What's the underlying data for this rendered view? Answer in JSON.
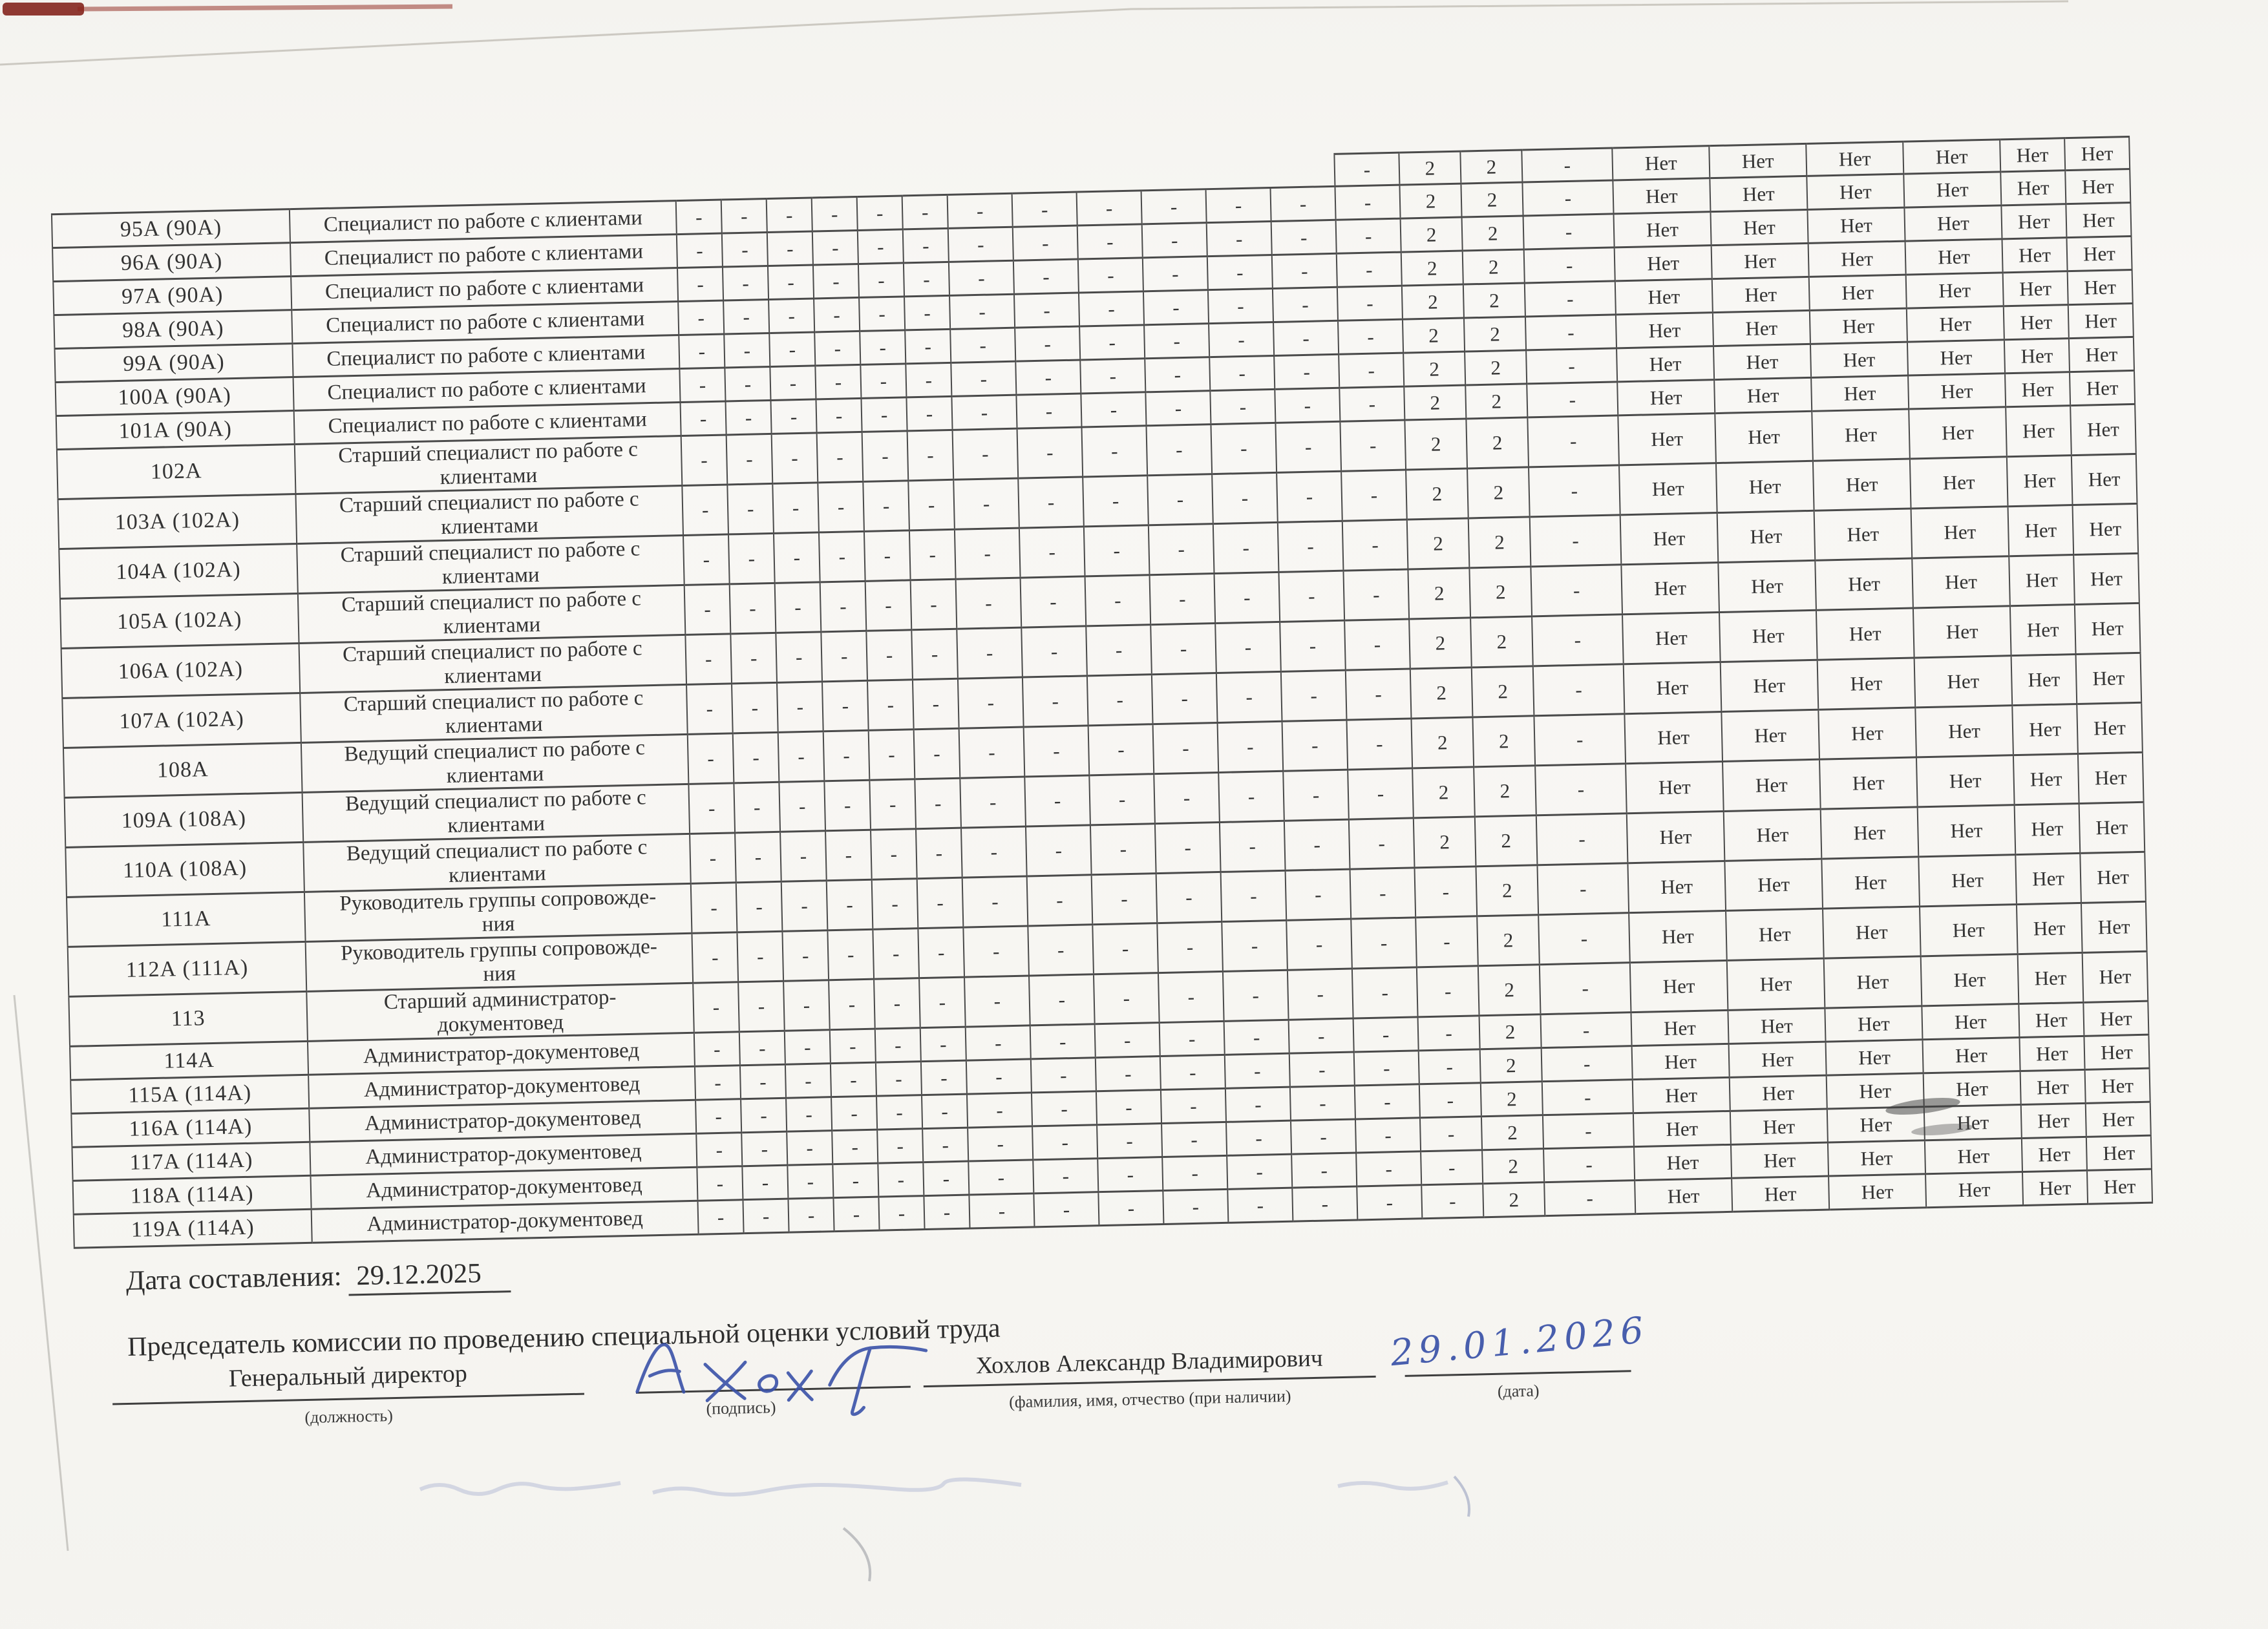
{
  "document": {
    "footer": {
      "date_label": "Дата составления:",
      "date_value": "29.12.2025",
      "chairman_heading": "Председатель комиссии по проведению специальной оценки условий труда",
      "position_value": "Генеральный директор",
      "position_caption": "(должность)",
      "signature_caption": "(подпись)",
      "name_value": "Хохлов Александр Владимирович",
      "name_caption": "(фамилия, имя, отчество (при наличии)",
      "handwritten_date": "29.01.2026",
      "date_caption": "(дата)"
    }
  },
  "colors": {
    "paper": "#f7f6f2",
    "table_border": "#4a4a4a",
    "text": "#333333",
    "blue_ink": "#3a52a8",
    "red_scan_edge": "#7c1710"
  },
  "table": {
    "value_patterns": {
      "standard": [
        "-",
        "-",
        "-",
        "-",
        "-",
        "-",
        "-",
        "-",
        "-",
        "-",
        "-",
        "-",
        "-",
        "2",
        "2",
        "-",
        "Нет",
        "Нет",
        "Нет",
        "Нет",
        "Нет",
        "Нет"
      ],
      "no_tension": [
        "-",
        "-",
        "-",
        "-",
        "-",
        "-",
        "-",
        "-",
        "-",
        "-",
        "-",
        "-",
        "-",
        "-",
        "2",
        "-",
        "Нет",
        "Нет",
        "Нет",
        "Нет",
        "Нет",
        "Нет"
      ],
      "partial_top": [
        "",
        "",
        "",
        "",
        "",
        "",
        "",
        "",
        "",
        "",
        "",
        "",
        "-",
        "2",
        "2",
        "-",
        "Нет",
        "Нет",
        "Нет",
        "Нет",
        "Нет",
        "Нет"
      ]
    },
    "rows": [
      {
        "num": "",
        "title": "",
        "pattern": "partial_top",
        "kind": "partial"
      },
      {
        "num": "95А (90А)",
        "title": "Специалист по работе с клиентами",
        "pattern": "standard",
        "kind": "single"
      },
      {
        "num": "96А (90А)",
        "title": "Специалист по работе с клиентами",
        "pattern": "standard",
        "kind": "single"
      },
      {
        "num": "97А (90А)",
        "title": "Специалист по работе с клиентами",
        "pattern": "standard",
        "kind": "single"
      },
      {
        "num": "98А (90А)",
        "title": "Специалист по работе с клиентами",
        "pattern": "standard",
        "kind": "single"
      },
      {
        "num": "99А (90А)",
        "title": "Специалист по работе с клиентами",
        "pattern": "standard",
        "kind": "single"
      },
      {
        "num": "100А (90А)",
        "title": "Специалист по работе с клиентами",
        "pattern": "standard",
        "kind": "single"
      },
      {
        "num": "101А (90А)",
        "title": "Специалист по работе с клиентами",
        "pattern": "standard",
        "kind": "single"
      },
      {
        "num": "102А",
        "title": "Старший специалист по работе с\nклиентами",
        "pattern": "standard",
        "kind": "double"
      },
      {
        "num": "103А (102А)",
        "title": "Старший специалист по работе с\nклиентами",
        "pattern": "standard",
        "kind": "double"
      },
      {
        "num": "104А (102А)",
        "title": "Старший специалист по работе с\nклиентами",
        "pattern": "standard",
        "kind": "double"
      },
      {
        "num": "105А (102А)",
        "title": "Старший специалист по работе с\nклиентами",
        "pattern": "standard",
        "kind": "double"
      },
      {
        "num": "106А (102А)",
        "title": "Старший специалист по работе с\nклиентами",
        "pattern": "standard",
        "kind": "double"
      },
      {
        "num": "107А (102А)",
        "title": "Старший специалист по работе с\nклиентами",
        "pattern": "standard",
        "kind": "double"
      },
      {
        "num": "108А",
        "title": "Ведущий специалист по работе с\nклиентами",
        "pattern": "standard",
        "kind": "double"
      },
      {
        "num": "109А (108А)",
        "title": "Ведущий специалист по работе с\nклиентами",
        "pattern": "standard",
        "kind": "double"
      },
      {
        "num": "110А (108А)",
        "title": "Ведущий специалист по работе с\nклиентами",
        "pattern": "standard",
        "kind": "double"
      },
      {
        "num": "111А",
        "title": "Руководитель группы сопровожде-\nния",
        "pattern": "no_tension",
        "kind": "double"
      },
      {
        "num": "112А (111А)",
        "title": "Руководитель группы сопровожде-\nния",
        "pattern": "no_tension",
        "kind": "double"
      },
      {
        "num": "113",
        "title": "Старший администратор-\nдокументовед",
        "pattern": "no_tension",
        "kind": "double"
      },
      {
        "num": "114А",
        "title": "Администратор-документовед",
        "pattern": "no_tension",
        "kind": "single"
      },
      {
        "num": "115А (114А)",
        "title": "Администратор-документовед",
        "pattern": "no_tension",
        "kind": "single"
      },
      {
        "num": "116А (114А)",
        "title": "Администратор-документовед",
        "pattern": "no_tension",
        "kind": "single"
      },
      {
        "num": "117А (114А)",
        "title": "Администратор-документовед",
        "pattern": "no_tension",
        "kind": "single"
      },
      {
        "num": "118А (114А)",
        "title": "Администратор-документовед",
        "pattern": "no_tension",
        "kind": "single"
      },
      {
        "num": "119А (114А)",
        "title": "Администратор-документовед",
        "pattern": "no_tension",
        "kind": "single"
      }
    ]
  }
}
